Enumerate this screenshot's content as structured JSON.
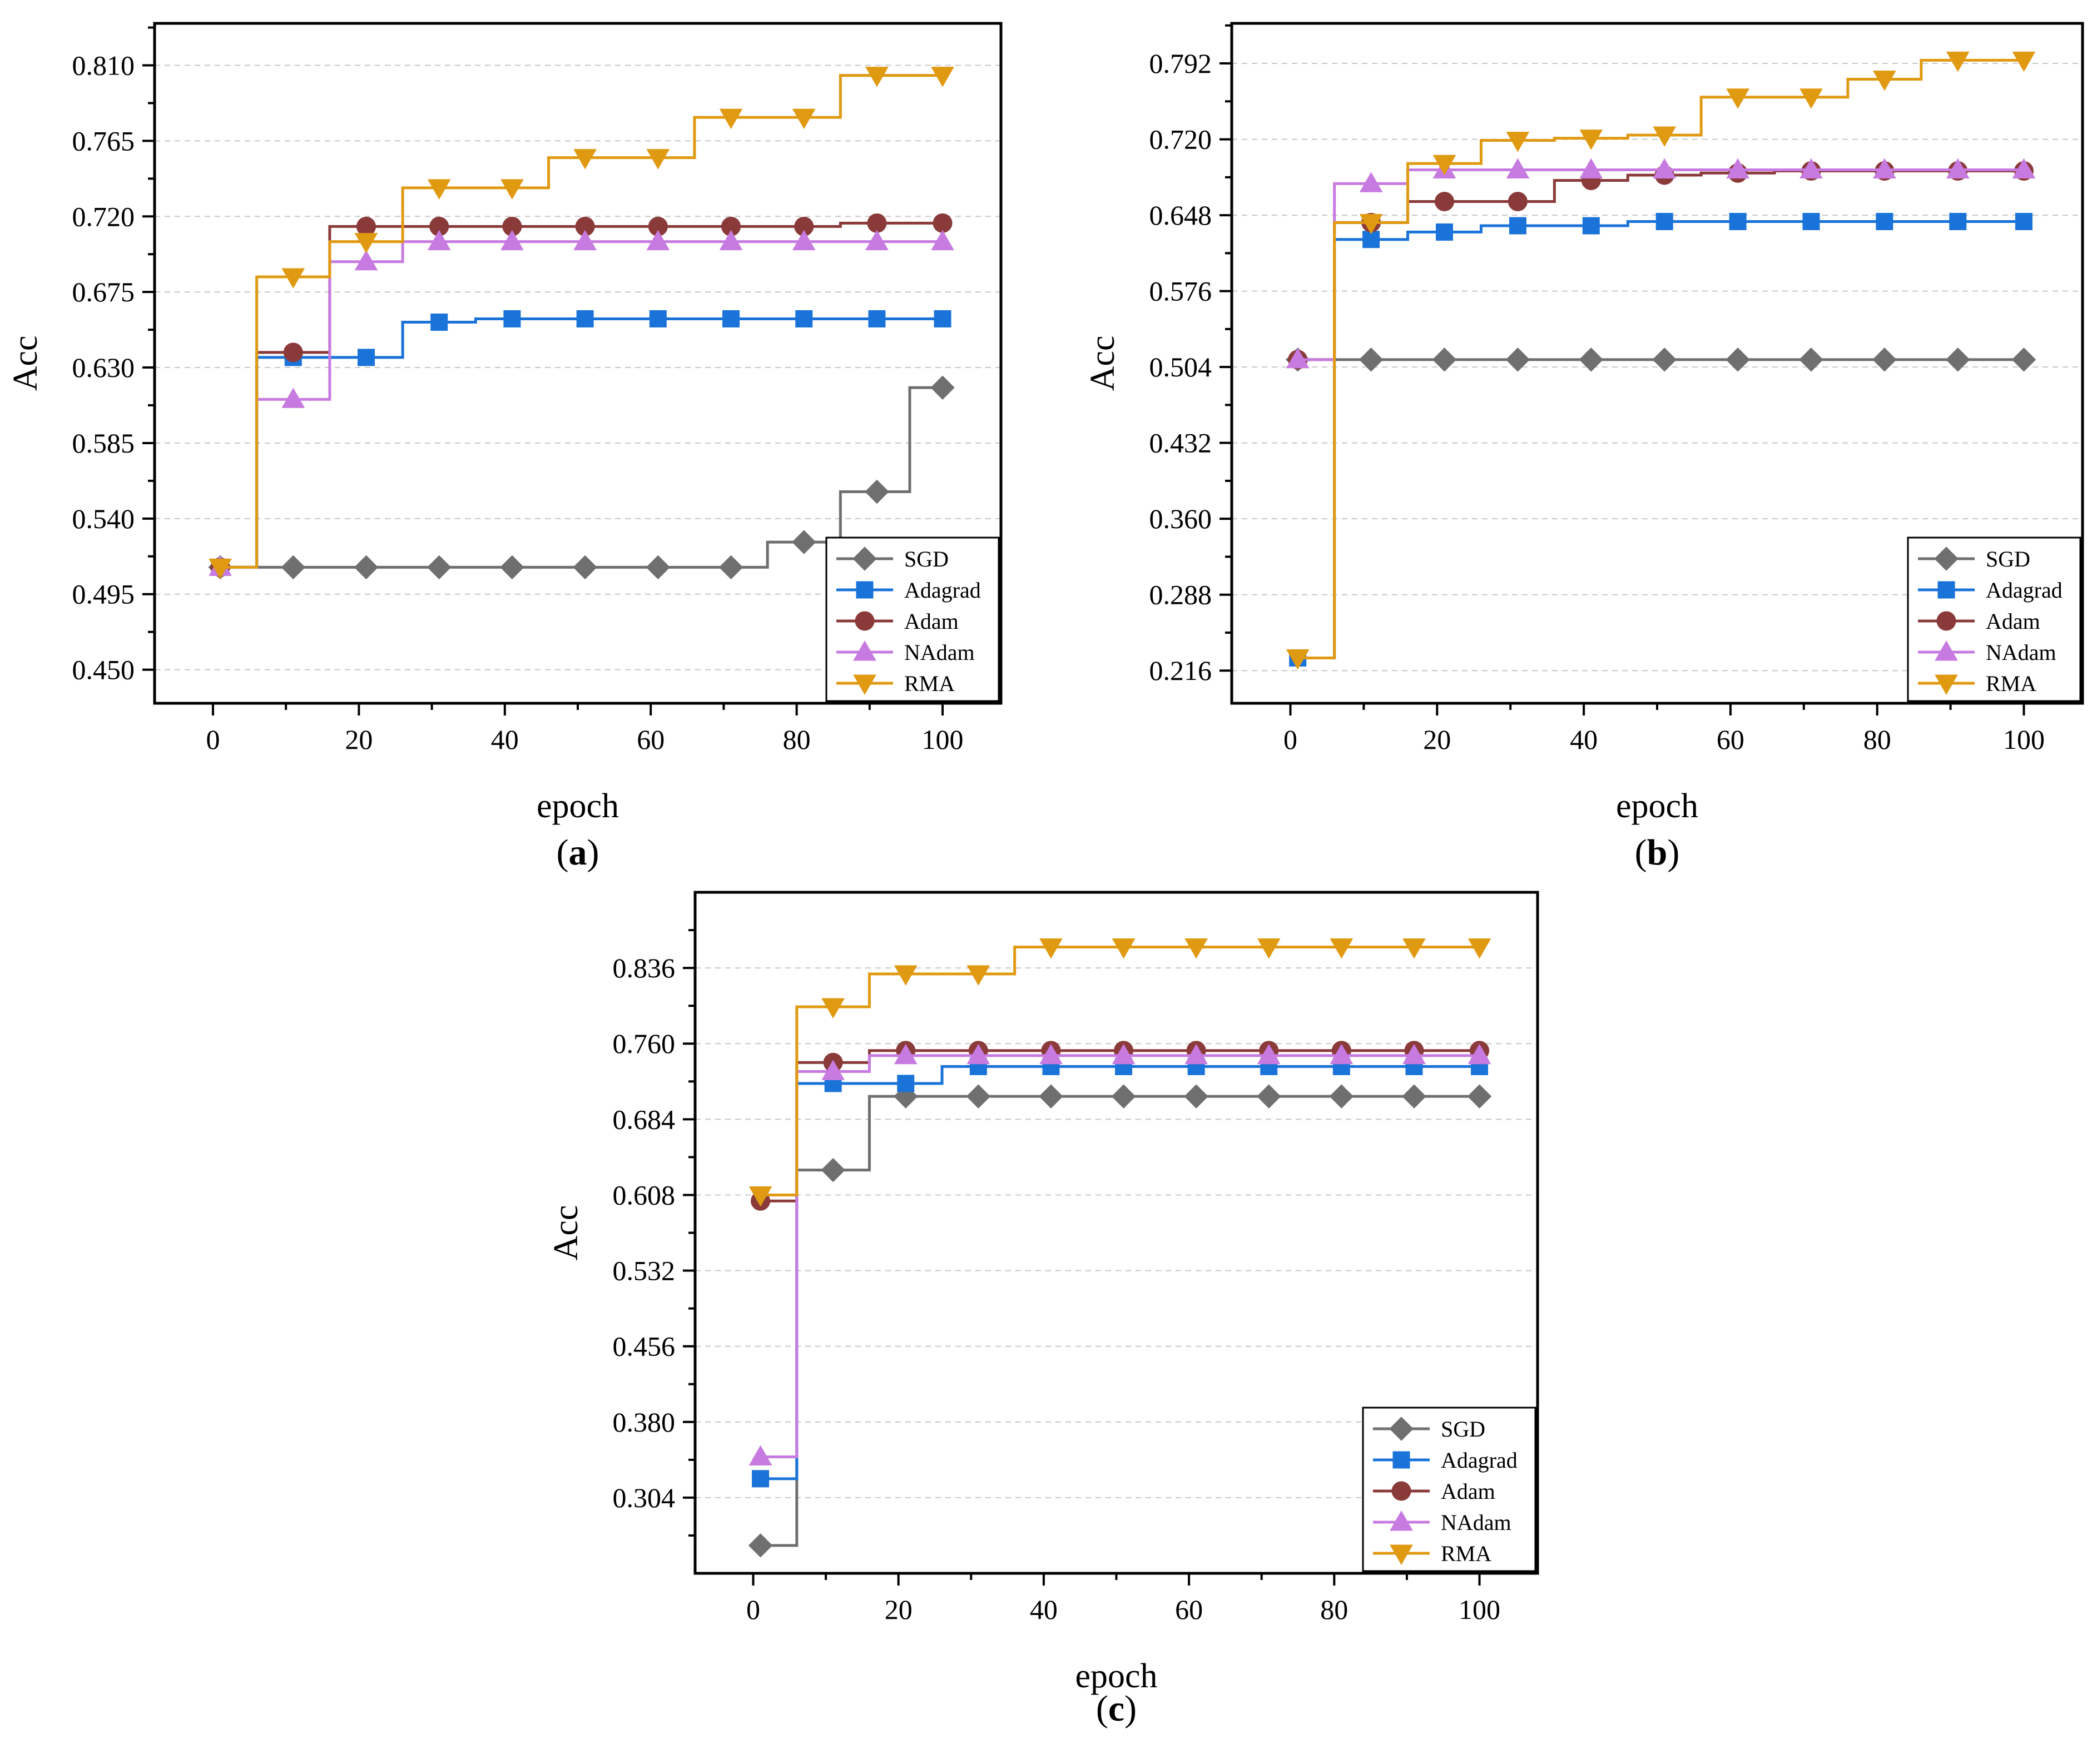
{
  "chart_data": [
    {
      "panel": "a",
      "type": "line",
      "caption_open": "(",
      "caption_letter": "a",
      "caption_close": ")",
      "xlabel": "epoch",
      "ylabel": "Acc",
      "xlim": [
        -8,
        108
      ],
      "ylim": [
        0.43,
        0.835
      ],
      "xticks": [
        "0",
        "20",
        "40",
        "60",
        "80",
        "100"
      ],
      "yticks": [
        "0.450",
        "0.495",
        "0.540",
        "0.585",
        "0.630",
        "0.675",
        "0.720",
        "0.765",
        "0.810"
      ],
      "grid": true,
      "legend_position": "bottom-right",
      "series": [
        {
          "name": "SGD",
          "color": "#6f6f6f",
          "marker": "diamond",
          "x": [
            1,
            11,
            21,
            31,
            41,
            51,
            61,
            71,
            81,
            91,
            100
          ],
          "y": [
            0.511,
            0.511,
            0.511,
            0.511,
            0.511,
            0.511,
            0.511,
            0.511,
            0.526,
            0.556,
            0.618
          ]
        },
        {
          "name": "Adagrad",
          "color": "#1a73d9",
          "marker": "square",
          "x": [
            1,
            11,
            21,
            31,
            41,
            51,
            61,
            71,
            81,
            91,
            100
          ],
          "y": [
            0.511,
            0.636,
            0.636,
            0.657,
            0.659,
            0.659,
            0.659,
            0.659,
            0.659,
            0.659,
            0.659
          ]
        },
        {
          "name": "Adam",
          "color": "#8b3a3a",
          "marker": "circle",
          "x": [
            1,
            11,
            21,
            31,
            41,
            51,
            61,
            71,
            81,
            91,
            100
          ],
          "y": [
            0.511,
            0.639,
            0.714,
            0.714,
            0.714,
            0.714,
            0.714,
            0.714,
            0.714,
            0.716,
            0.716
          ]
        },
        {
          "name": "NAdam",
          "color": "#c77be0",
          "marker": "triangle-up",
          "x": [
            1,
            11,
            21,
            31,
            41,
            51,
            61,
            71,
            81,
            91,
            100
          ],
          "y": [
            0.511,
            0.611,
            0.693,
            0.705,
            0.705,
            0.705,
            0.705,
            0.705,
            0.705,
            0.705,
            0.705
          ]
        },
        {
          "name": "RMA",
          "color": "#e09a12",
          "marker": "triangle-down",
          "x": [
            1,
            11,
            21,
            31,
            41,
            51,
            61,
            71,
            81,
            91,
            100
          ],
          "y": [
            0.511,
            0.684,
            0.705,
            0.737,
            0.737,
            0.755,
            0.755,
            0.779,
            0.779,
            0.804,
            0.804
          ]
        }
      ]
    },
    {
      "panel": "b",
      "type": "line",
      "caption_open": "(",
      "caption_letter": "b",
      "caption_close": ")",
      "xlabel": "epoch",
      "ylabel": "Acc",
      "xlim": [
        -8,
        108
      ],
      "ylim": [
        0.185,
        0.83
      ],
      "xticks": [
        "0",
        "20",
        "40",
        "60",
        "80",
        "100"
      ],
      "yticks": [
        "0.216",
        "0.288",
        "0.360",
        "0.432",
        "0.504",
        "0.576",
        "0.648",
        "0.720",
        "0.792"
      ],
      "grid": true,
      "legend_position": "bottom-right",
      "series": [
        {
          "name": "SGD",
          "color": "#6f6f6f",
          "marker": "diamond",
          "x": [
            1,
            11,
            21,
            31,
            41,
            51,
            61,
            71,
            81,
            91,
            100
          ],
          "y": [
            0.511,
            0.511,
            0.511,
            0.511,
            0.511,
            0.511,
            0.511,
            0.511,
            0.511,
            0.511,
            0.511
          ]
        },
        {
          "name": "Adagrad",
          "color": "#1a73d9",
          "marker": "square",
          "x": [
            1,
            11,
            21,
            31,
            41,
            51,
            61,
            71,
            81,
            91,
            100
          ],
          "y": [
            0.228,
            0.625,
            0.632,
            0.638,
            0.638,
            0.642,
            0.642,
            0.642,
            0.642,
            0.642,
            0.642
          ]
        },
        {
          "name": "Adam",
          "color": "#8b3a3a",
          "marker": "circle",
          "x": [
            1,
            11,
            21,
            31,
            41,
            51,
            61,
            71,
            81,
            91,
            100
          ],
          "y": [
            0.511,
            0.641,
            0.661,
            0.661,
            0.681,
            0.686,
            0.688,
            0.69,
            0.69,
            0.69,
            0.69
          ]
        },
        {
          "name": "NAdam",
          "color": "#c77be0",
          "marker": "triangle-up",
          "x": [
            1,
            11,
            21,
            31,
            41,
            51,
            61,
            71,
            81,
            91,
            100
          ],
          "y": [
            0.511,
            0.678,
            0.691,
            0.691,
            0.691,
            0.691,
            0.691,
            0.691,
            0.691,
            0.691,
            0.691
          ]
        },
        {
          "name": "RMA",
          "color": "#e09a12",
          "marker": "triangle-down",
          "x": [
            1,
            11,
            21,
            31,
            41,
            51,
            61,
            71,
            81,
            91,
            100
          ],
          "y": [
            0.228,
            0.641,
            0.697,
            0.719,
            0.721,
            0.724,
            0.76,
            0.76,
            0.777,
            0.795,
            0.795
          ]
        }
      ]
    },
    {
      "panel": "c",
      "type": "line",
      "caption_open": "(",
      "caption_letter": "c",
      "caption_close": ")",
      "xlabel": "epoch",
      "ylabel": "Acc",
      "xlim": [
        -8,
        108
      ],
      "ylim": [
        0.228,
        0.912
      ],
      "xticks": [
        "0",
        "20",
        "40",
        "60",
        "80",
        "100"
      ],
      "yticks": [
        "0.304",
        "0.380",
        "0.456",
        "0.532",
        "0.608",
        "0.684",
        "0.760",
        "0.836"
      ],
      "grid": true,
      "legend_position": "bottom-right",
      "series": [
        {
          "name": "SGD",
          "color": "#6f6f6f",
          "marker": "diamond",
          "x": [
            1,
            11,
            21,
            31,
            41,
            51,
            61,
            71,
            81,
            91,
            100
          ],
          "y": [
            0.256,
            0.633,
            0.707,
            0.707,
            0.707,
            0.707,
            0.707,
            0.707,
            0.707,
            0.707,
            0.707
          ]
        },
        {
          "name": "Adagrad",
          "color": "#1a73d9",
          "marker": "square",
          "x": [
            1,
            11,
            21,
            31,
            41,
            51,
            61,
            71,
            81,
            91,
            100
          ],
          "y": [
            0.323,
            0.72,
            0.72,
            0.737,
            0.737,
            0.737,
            0.737,
            0.737,
            0.737,
            0.737,
            0.737
          ]
        },
        {
          "name": "Adam",
          "color": "#8b3a3a",
          "marker": "circle",
          "x": [
            1,
            11,
            21,
            31,
            41,
            51,
            61,
            71,
            81,
            91,
            100
          ],
          "y": [
            0.602,
            0.741,
            0.753,
            0.753,
            0.753,
            0.753,
            0.753,
            0.753,
            0.753,
            0.753,
            0.753
          ]
        },
        {
          "name": "NAdam",
          "color": "#c77be0",
          "marker": "triangle-up",
          "x": [
            1,
            11,
            21,
            31,
            41,
            51,
            61,
            71,
            81,
            91,
            100
          ],
          "y": [
            0.345,
            0.732,
            0.748,
            0.748,
            0.748,
            0.748,
            0.748,
            0.748,
            0.748,
            0.748,
            0.748
          ]
        },
        {
          "name": "RMA",
          "color": "#e09a12",
          "marker": "triangle-down",
          "x": [
            1,
            11,
            21,
            31,
            41,
            51,
            61,
            71,
            81,
            91,
            100
          ],
          "y": [
            0.608,
            0.797,
            0.83,
            0.83,
            0.857,
            0.857,
            0.857,
            0.857,
            0.857,
            0.857,
            0.857
          ]
        }
      ]
    }
  ]
}
